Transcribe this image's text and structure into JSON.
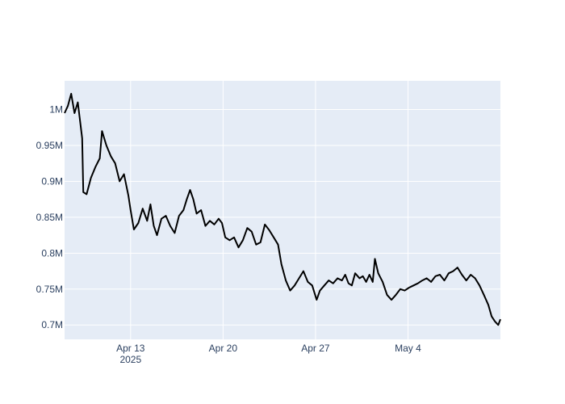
{
  "chart_data": {
    "type": "line",
    "title": "",
    "xlabel": "",
    "ylabel": "",
    "grid": true,
    "legend": "none",
    "colors": {
      "plot_background": "#E5ECF6",
      "grid": "#FFFFFF",
      "line": "#000000",
      "tick_text": "#2a3f5f"
    },
    "x_range": [
      "2025-04-08",
      "2025-05-11"
    ],
    "y_range": [
      680000,
      1040000
    ],
    "x_ticks": [
      {
        "date": "2025-04-13",
        "label": "Apr 13",
        "sublabel": "2025"
      },
      {
        "date": "2025-04-20",
        "label": "Apr 20"
      },
      {
        "date": "2025-04-27",
        "label": "Apr 27"
      },
      {
        "date": "2025-05-04",
        "label": "May 4"
      }
    ],
    "y_ticks": [
      {
        "value": 700000,
        "label": "0.7M"
      },
      {
        "value": 750000,
        "label": "0.75M"
      },
      {
        "value": 800000,
        "label": "0.8M"
      },
      {
        "value": 850000,
        "label": "0.85M"
      },
      {
        "value": 900000,
        "label": "0.9M"
      },
      {
        "value": 950000,
        "label": "0.95M"
      },
      {
        "value": 1000000,
        "label": "1M"
      }
    ],
    "series": [
      {
        "points": [
          [
            "2025-04-08 00:00",
            995000
          ],
          [
            "2025-04-08 06:00",
            1005000
          ],
          [
            "2025-04-08 12:00",
            1022000
          ],
          [
            "2025-04-08 18:00",
            995000
          ],
          [
            "2025-04-09 00:00",
            1010000
          ],
          [
            "2025-04-09 04:00",
            985000
          ],
          [
            "2025-04-09 08:00",
            960000
          ],
          [
            "2025-04-09 10:00",
            885000
          ],
          [
            "2025-04-09 16:00",
            882000
          ],
          [
            "2025-04-10 00:00",
            905000
          ],
          [
            "2025-04-10 08:00",
            920000
          ],
          [
            "2025-04-10 16:00",
            932000
          ],
          [
            "2025-04-10 20:00",
            970000
          ],
          [
            "2025-04-11 04:00",
            950000
          ],
          [
            "2025-04-11 12:00",
            935000
          ],
          [
            "2025-04-11 20:00",
            925000
          ],
          [
            "2025-04-12 04:00",
            900000
          ],
          [
            "2025-04-12 12:00",
            910000
          ],
          [
            "2025-04-12 20:00",
            880000
          ],
          [
            "2025-04-13 00:00",
            860000
          ],
          [
            "2025-04-13 06:00",
            833000
          ],
          [
            "2025-04-13 14:00",
            842000
          ],
          [
            "2025-04-13 22:00",
            862000
          ],
          [
            "2025-04-14 06:00",
            845000
          ],
          [
            "2025-04-14 12:00",
            868000
          ],
          [
            "2025-04-14 18:00",
            838000
          ],
          [
            "2025-04-15 00:00",
            825000
          ],
          [
            "2025-04-15 08:00",
            848000
          ],
          [
            "2025-04-15 16:00",
            852000
          ],
          [
            "2025-04-16 00:00",
            838000
          ],
          [
            "2025-04-16 08:00",
            828000
          ],
          [
            "2025-04-16 16:00",
            852000
          ],
          [
            "2025-04-17 00:00",
            860000
          ],
          [
            "2025-04-17 06:00",
            875000
          ],
          [
            "2025-04-17 12:00",
            888000
          ],
          [
            "2025-04-17 18:00",
            875000
          ],
          [
            "2025-04-18 00:00",
            855000
          ],
          [
            "2025-04-18 08:00",
            860000
          ],
          [
            "2025-04-18 16:00",
            838000
          ],
          [
            "2025-04-19 00:00",
            845000
          ],
          [
            "2025-04-19 08:00",
            840000
          ],
          [
            "2025-04-19 16:00",
            848000
          ],
          [
            "2025-04-19 22:00",
            842000
          ],
          [
            "2025-04-20 04:00",
            822000
          ],
          [
            "2025-04-20 12:00",
            818000
          ],
          [
            "2025-04-20 20:00",
            822000
          ],
          [
            "2025-04-21 04:00",
            808000
          ],
          [
            "2025-04-21 12:00",
            818000
          ],
          [
            "2025-04-21 20:00",
            835000
          ],
          [
            "2025-04-22 04:00",
            830000
          ],
          [
            "2025-04-22 12:00",
            812000
          ],
          [
            "2025-04-22 20:00",
            815000
          ],
          [
            "2025-04-23 04:00",
            840000
          ],
          [
            "2025-04-23 12:00",
            832000
          ],
          [
            "2025-04-23 20:00",
            822000
          ],
          [
            "2025-04-24 04:00",
            812000
          ],
          [
            "2025-04-24 10:00",
            785000
          ],
          [
            "2025-04-24 18:00",
            762000
          ],
          [
            "2025-04-25 02:00",
            748000
          ],
          [
            "2025-04-25 10:00",
            755000
          ],
          [
            "2025-04-25 18:00",
            765000
          ],
          [
            "2025-04-26 02:00",
            775000
          ],
          [
            "2025-04-26 10:00",
            760000
          ],
          [
            "2025-04-26 18:00",
            755000
          ],
          [
            "2025-04-27 02:00",
            735000
          ],
          [
            "2025-04-27 08:00",
            748000
          ],
          [
            "2025-04-27 16:00",
            755000
          ],
          [
            "2025-04-28 00:00",
            762000
          ],
          [
            "2025-04-28 08:00",
            758000
          ],
          [
            "2025-04-28 16:00",
            765000
          ],
          [
            "2025-04-29 00:00",
            762000
          ],
          [
            "2025-04-29 06:00",
            770000
          ],
          [
            "2025-04-29 12:00",
            758000
          ],
          [
            "2025-04-29 18:00",
            755000
          ],
          [
            "2025-04-30 00:00",
            772000
          ],
          [
            "2025-04-30 08:00",
            765000
          ],
          [
            "2025-04-30 14:00",
            768000
          ],
          [
            "2025-04-30 20:00",
            760000
          ],
          [
            "2025-05-01 02:00",
            770000
          ],
          [
            "2025-05-01 08:00",
            760000
          ],
          [
            "2025-05-01 12:00",
            792000
          ],
          [
            "2025-05-01 18:00",
            772000
          ],
          [
            "2025-05-02 02:00",
            760000
          ],
          [
            "2025-05-02 10:00",
            742000
          ],
          [
            "2025-05-02 18:00",
            735000
          ],
          [
            "2025-05-03 02:00",
            742000
          ],
          [
            "2025-05-03 10:00",
            750000
          ],
          [
            "2025-05-03 18:00",
            748000
          ],
          [
            "2025-05-04 02:00",
            752000
          ],
          [
            "2025-05-04 10:00",
            755000
          ],
          [
            "2025-05-04 18:00",
            758000
          ],
          [
            "2025-05-05 02:00",
            762000
          ],
          [
            "2025-05-05 10:00",
            765000
          ],
          [
            "2025-05-05 18:00",
            760000
          ],
          [
            "2025-05-06 02:00",
            768000
          ],
          [
            "2025-05-06 10:00",
            770000
          ],
          [
            "2025-05-06 18:00",
            762000
          ],
          [
            "2025-05-07 02:00",
            772000
          ],
          [
            "2025-05-07 10:00",
            775000
          ],
          [
            "2025-05-07 18:00",
            780000
          ],
          [
            "2025-05-08 02:00",
            770000
          ],
          [
            "2025-05-08 10:00",
            762000
          ],
          [
            "2025-05-08 18:00",
            770000
          ],
          [
            "2025-05-09 02:00",
            765000
          ],
          [
            "2025-05-09 10:00",
            755000
          ],
          [
            "2025-05-09 18:00",
            742000
          ],
          [
            "2025-05-10 02:00",
            728000
          ],
          [
            "2025-05-10 08:00",
            712000
          ],
          [
            "2025-05-10 14:00",
            705000
          ],
          [
            "2025-05-10 20:00",
            700000
          ],
          [
            "2025-05-11 00:00",
            708000
          ]
        ]
      }
    ]
  }
}
